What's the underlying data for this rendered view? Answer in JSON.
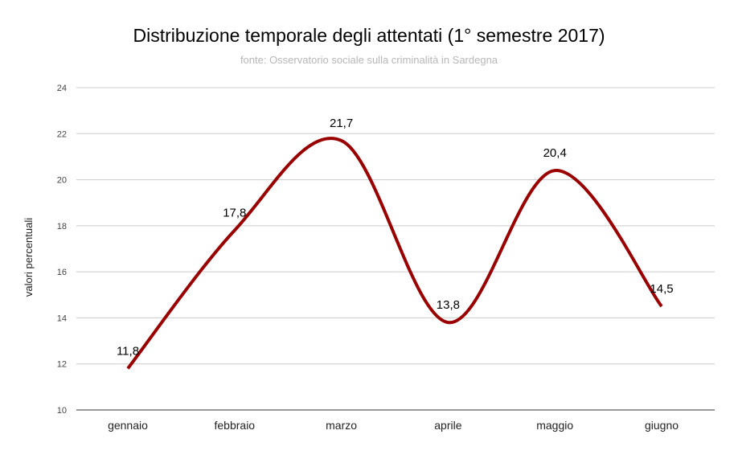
{
  "chart_data": {
    "type": "line",
    "title": "Distribuzione temporale degli attentati (1° semestre 2017)",
    "subtitle": "fonte: Osservatorio sociale sulla criminalità in Sardegna",
    "xlabel": "",
    "ylabel": "valori percentuali",
    "categories": [
      "gennaio",
      "febbraio",
      "marzo",
      "aprile",
      "maggio",
      "giugno"
    ],
    "values": [
      11.8,
      17.8,
      21.7,
      13.8,
      20.4,
      14.5
    ],
    "data_labels": [
      "11,8",
      "17,8",
      "21,7",
      "13,8",
      "20,4",
      "14,5"
    ],
    "ylim": [
      10,
      24
    ],
    "yticks": [
      "10",
      "12",
      "14",
      "16",
      "18",
      "20",
      "22",
      "24"
    ],
    "smooth": true,
    "grid": true,
    "legend": "none",
    "colors": {
      "line": "#990000",
      "grid": "#cccccc",
      "title": "#000000",
      "subtitle": "#b7b7b7",
      "tick": "#444444"
    }
  }
}
